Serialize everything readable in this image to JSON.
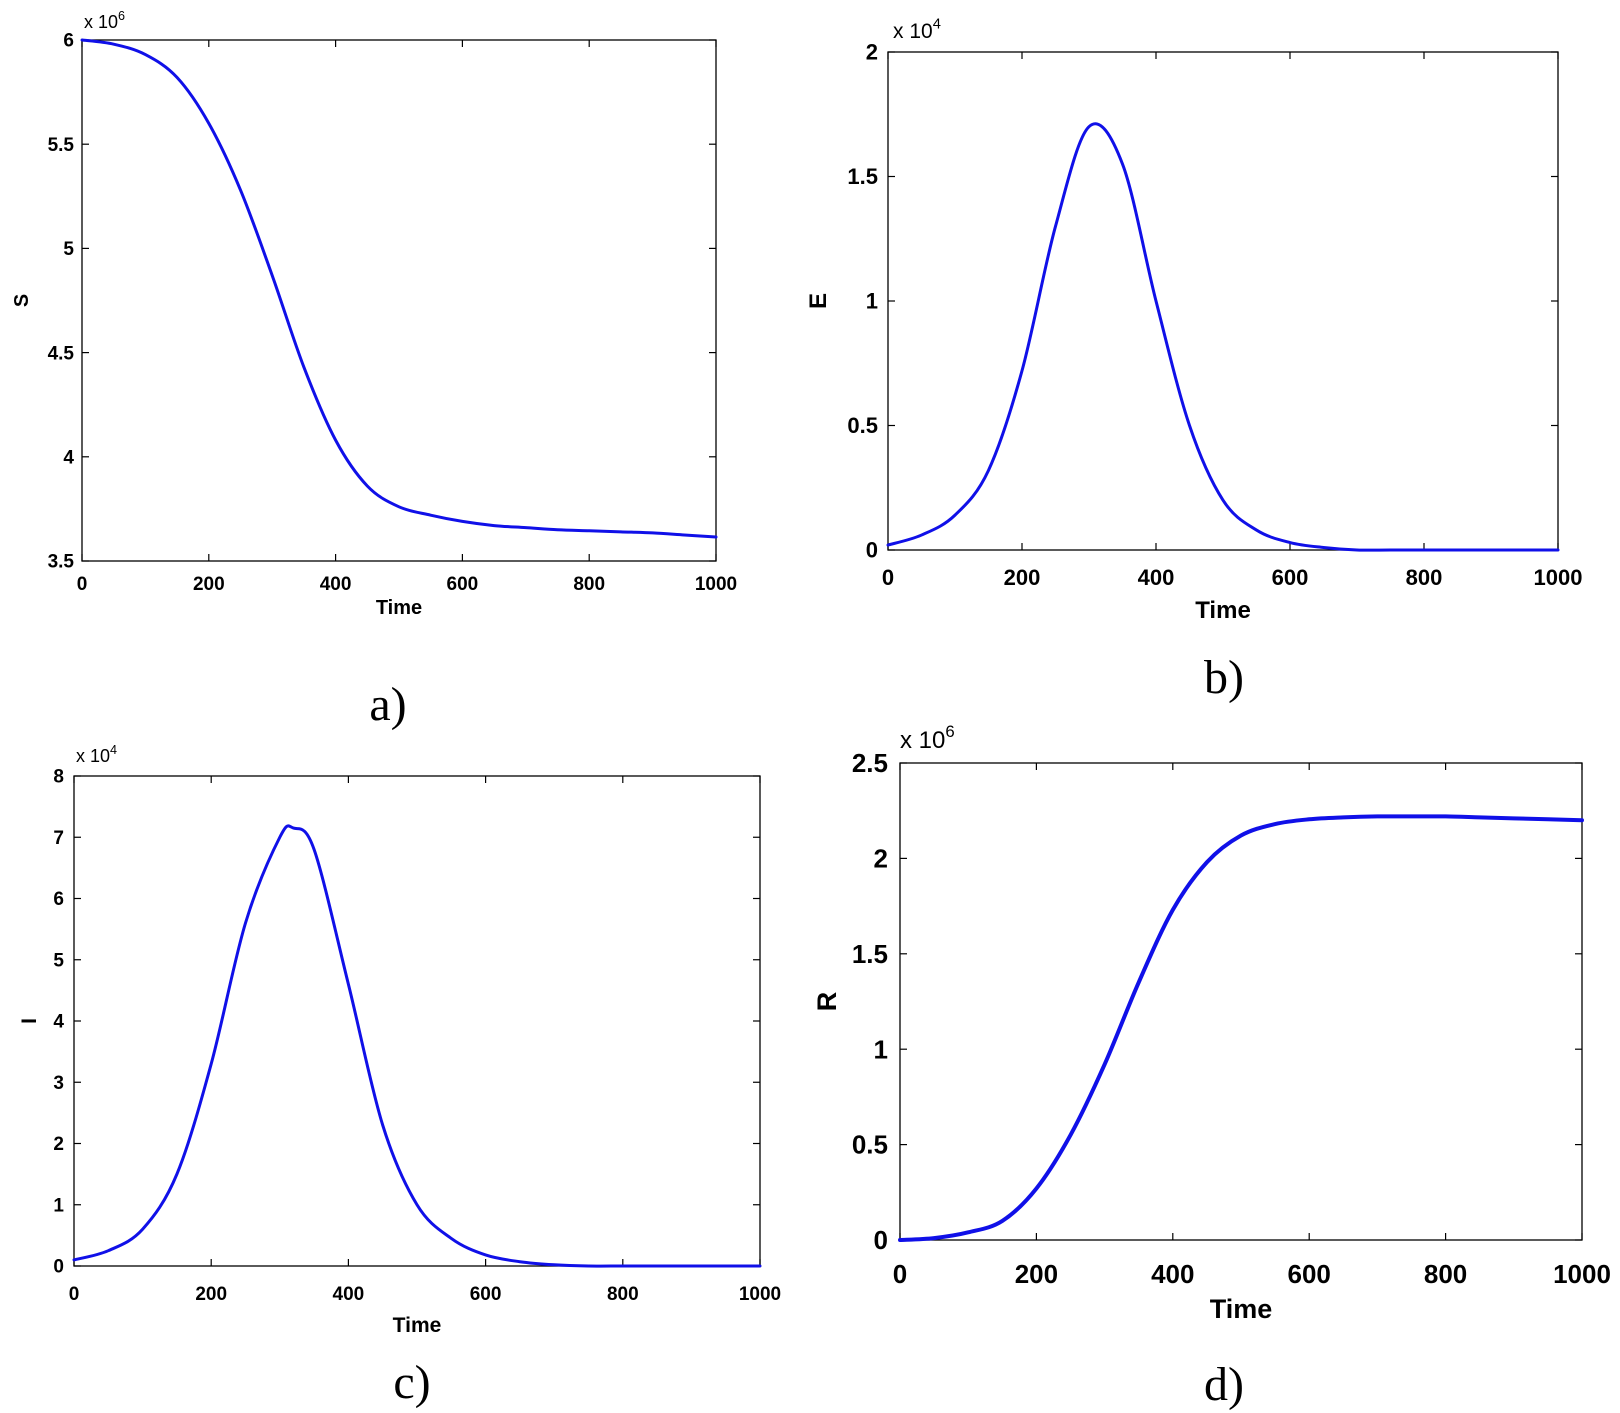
{
  "chart_data": [
    {
      "type": "line",
      "caption": "a)",
      "xlabel": "Time",
      "ylabel": "S",
      "y_multiplier": "x 10",
      "y_exponent": "6",
      "xlim": [
        0,
        1000
      ],
      "ylim": [
        3.5,
        6
      ],
      "x_ticks": [
        "0",
        "200",
        "400",
        "600",
        "800",
        "1000"
      ],
      "y_ticks": [
        "3.5",
        "4",
        "4.5",
        "5",
        "5.5",
        "6"
      ],
      "grid": false,
      "color": "#1010e8",
      "series": [
        {
          "x": [
            0,
            50,
            100,
            150,
            200,
            250,
            300,
            350,
            400,
            450,
            500,
            550,
            600,
            650,
            700,
            750,
            800,
            850,
            900,
            950,
            1000
          ],
          "y": [
            6.0,
            5.98,
            5.93,
            5.82,
            5.6,
            5.28,
            4.87,
            4.43,
            4.08,
            3.86,
            3.76,
            3.72,
            3.69,
            3.67,
            3.66,
            3.65,
            3.645,
            3.64,
            3.635,
            3.625,
            3.615
          ]
        }
      ]
    },
    {
      "type": "line",
      "caption": "b)",
      "xlabel": "Time",
      "ylabel": "E",
      "y_multiplier": "x 10",
      "y_exponent": "4",
      "xlim": [
        0,
        1000
      ],
      "ylim": [
        0,
        2
      ],
      "x_ticks": [
        "0",
        "200",
        "400",
        "600",
        "800",
        "1000"
      ],
      "y_ticks": [
        "0",
        "0.5",
        "1",
        "1.5",
        "2"
      ],
      "grid": false,
      "color": "#1010e8",
      "series": [
        {
          "x": [
            0,
            50,
            100,
            150,
            200,
            250,
            300,
            350,
            400,
            450,
            500,
            550,
            600,
            650,
            700,
            750,
            800,
            850,
            900,
            950,
            1000
          ],
          "y": [
            0.02,
            0.06,
            0.14,
            0.32,
            0.72,
            1.3,
            1.7,
            1.55,
            1.0,
            0.5,
            0.2,
            0.08,
            0.03,
            0.01,
            0.0,
            0.0,
            0.0,
            0.0,
            0.0,
            0.0,
            0.0
          ]
        }
      ]
    },
    {
      "type": "line",
      "caption": "c)",
      "xlabel": "Time",
      "ylabel": "I",
      "y_multiplier": "x 10",
      "y_exponent": "4",
      "xlim": [
        0,
        1000
      ],
      "ylim": [
        0,
        8
      ],
      "x_ticks": [
        "0",
        "200",
        "400",
        "600",
        "800",
        "1000"
      ],
      "y_ticks": [
        "0",
        "1",
        "2",
        "3",
        "4",
        "5",
        "6",
        "7",
        "8"
      ],
      "grid": false,
      "color": "#1010e8",
      "series": [
        {
          "x": [
            0,
            50,
            100,
            150,
            200,
            250,
            300,
            320,
            350,
            400,
            450,
            500,
            550,
            600,
            650,
            700,
            750,
            800,
            850,
            900,
            950,
            1000
          ],
          "y": [
            0.1,
            0.25,
            0.6,
            1.5,
            3.3,
            5.6,
            7.0,
            7.15,
            6.8,
            4.6,
            2.3,
            1.0,
            0.45,
            0.18,
            0.07,
            0.02,
            0.0,
            0.0,
            0.0,
            0.0,
            0.0,
            0.0
          ]
        }
      ]
    },
    {
      "type": "line",
      "caption": "d)",
      "xlabel": "Time",
      "ylabel": "R",
      "y_multiplier": "x 10",
      "y_exponent": "6",
      "xlim": [
        0,
        1000
      ],
      "ylim": [
        0,
        2.5
      ],
      "x_ticks": [
        "0",
        "200",
        "400",
        "600",
        "800",
        "1000"
      ],
      "y_ticks": [
        "0",
        "0.5",
        "1",
        "1.5",
        "2",
        "2.5"
      ],
      "grid": false,
      "color": "#1010e8",
      "series": [
        {
          "x": [
            0,
            50,
            100,
            150,
            200,
            250,
            300,
            350,
            400,
            450,
            500,
            550,
            600,
            650,
            700,
            750,
            800,
            850,
            900,
            950,
            1000
          ],
          "y": [
            0.0,
            0.01,
            0.04,
            0.1,
            0.27,
            0.55,
            0.92,
            1.35,
            1.73,
            1.98,
            2.12,
            2.18,
            2.205,
            2.215,
            2.22,
            2.22,
            2.22,
            2.215,
            2.21,
            2.205,
            2.2
          ]
        }
      ]
    }
  ]
}
